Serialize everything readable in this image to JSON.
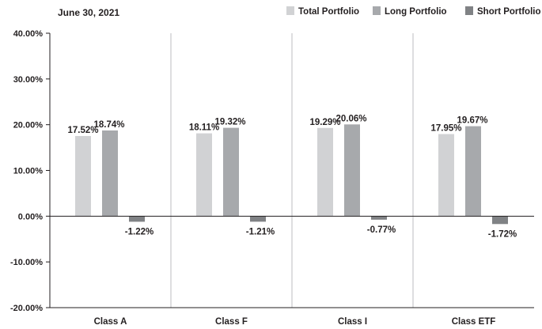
{
  "chart_data": {
    "type": "bar",
    "title": "June 30, 2021",
    "categories": [
      "Class A",
      "Class F",
      "Class I",
      "Class ETF"
    ],
    "series": [
      {
        "name": "Total Portfolio",
        "values": [
          17.52,
          18.11,
          19.29,
          17.95
        ],
        "color": "#d1d2d4"
      },
      {
        "name": "Long Portfolio",
        "values": [
          18.74,
          19.32,
          20.06,
          19.67
        ],
        "color": "#a7a9ac"
      },
      {
        "name": "Short Portfolio",
        "values": [
          -1.22,
          -1.21,
          -0.77,
          -1.72
        ],
        "color": "#808285"
      }
    ],
    "data_labels": [
      [
        "17.52%",
        "18.74%",
        "-1.22%"
      ],
      [
        "18.11%",
        "19.32%",
        "-1.21%"
      ],
      [
        "19.29%",
        "20.06%",
        "-0.77%"
      ],
      [
        "17.95%",
        "19.67%",
        "-1.72%"
      ]
    ],
    "yticks": [
      40,
      30,
      20,
      10,
      0,
      -10,
      -20
    ],
    "ytick_labels": [
      "40.00%",
      "30.00%",
      "20.00%",
      "10.00%",
      "0.00%",
      "-10.00%",
      "-20.00%"
    ],
    "ylim": [
      -20,
      40
    ],
    "xlabel": "",
    "ylabel": "",
    "legend_position": "top-right",
    "grid": "vertical category separators",
    "axis_color": "#231f20",
    "grid_color": "#bcbec0"
  }
}
